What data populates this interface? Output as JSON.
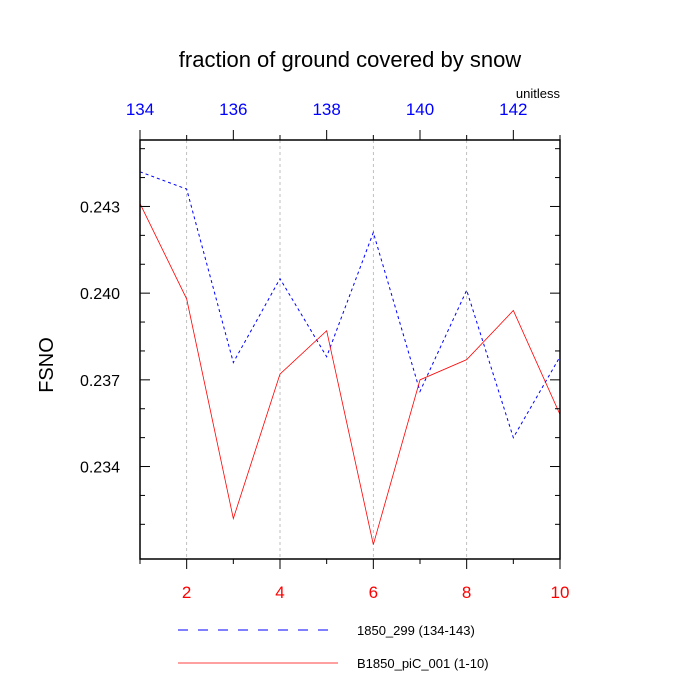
{
  "chart_data": {
    "type": "line",
    "title": "fraction of ground covered by snow",
    "units_label": "unitless",
    "ylabel": "FSNO",
    "ylim": [
      0.2308,
      0.2453
    ],
    "y_ticks": [
      {
        "value": 0.234,
        "label": "0.234"
      },
      {
        "value": 0.237,
        "label": "0.237"
      },
      {
        "value": 0.24,
        "label": "0.240"
      },
      {
        "value": 0.243,
        "label": "0.243"
      }
    ],
    "y_minor_ticks": [
      0.232,
      0.233,
      0.235,
      0.236,
      0.238,
      0.239,
      0.241,
      0.242,
      0.244,
      0.245
    ],
    "x_bottom": {
      "range": [
        1,
        10
      ],
      "ticks": [
        2,
        4,
        6,
        8,
        10
      ],
      "color": "#ff0000"
    },
    "x_top": {
      "range": [
        134,
        143
      ],
      "ticks": [
        134,
        136,
        138,
        140,
        142
      ],
      "color": "#0000ff"
    },
    "vertical_gridlines_at_bottom_x": [
      2,
      4,
      6,
      8
    ],
    "series": [
      {
        "name": "1850_299 (134-143)",
        "axis": "top",
        "color": "#0000ff",
        "dash": true,
        "x": [
          134,
          135,
          136,
          137,
          138,
          139,
          140,
          141,
          142,
          143
        ],
        "values": [
          0.2442,
          0.2436,
          0.2376,
          0.2405,
          0.2378,
          0.2421,
          0.2366,
          0.2401,
          0.235,
          0.2378
        ]
      },
      {
        "name": "B1850_piC_001 (1-10)",
        "axis": "bottom",
        "color": "#ff0000",
        "dash": false,
        "x": [
          1,
          2,
          3,
          4,
          5,
          6,
          7,
          8,
          9,
          10
        ],
        "values": [
          0.2431,
          0.2398,
          0.2322,
          0.2372,
          0.2387,
          0.2313,
          0.237,
          0.2377,
          0.2394,
          0.2358
        ]
      }
    ]
  }
}
